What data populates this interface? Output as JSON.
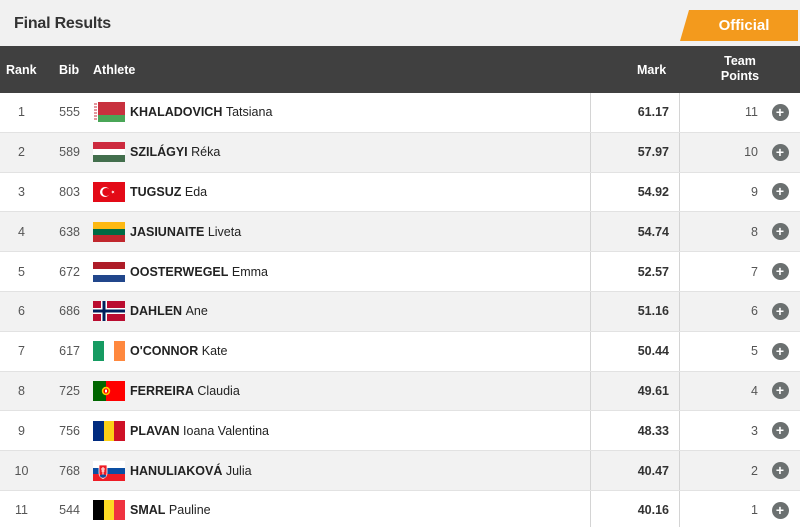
{
  "header": {
    "title": "Final Results",
    "status_badge": "Official"
  },
  "table": {
    "columns": {
      "rank": "Rank",
      "bib": "Bib",
      "athlete": "Athlete",
      "mark": "Mark",
      "team_points_line1": "Team",
      "team_points_line2": "Points"
    },
    "rows": [
      {
        "rank": "1",
        "bib": "555",
        "surname": "KHALADOVICH",
        "given": "Tatsiana",
        "flag": "belarus-flag",
        "mark": "61.17",
        "points": "11"
      },
      {
        "rank": "2",
        "bib": "589",
        "surname": "SZILÁGYI",
        "given": "Réka",
        "flag": "hungary-flag",
        "mark": "57.97",
        "points": "10"
      },
      {
        "rank": "3",
        "bib": "803",
        "surname": "TUGSUZ",
        "given": "Eda",
        "flag": "turkey-flag",
        "mark": "54.92",
        "points": "9"
      },
      {
        "rank": "4",
        "bib": "638",
        "surname": "JASIUNAITE",
        "given": "Liveta",
        "flag": "lithuania-flag",
        "mark": "54.74",
        "points": "8"
      },
      {
        "rank": "5",
        "bib": "672",
        "surname": "OOSTERWEGEL",
        "given": "Emma",
        "flag": "netherlands-flag",
        "mark": "52.57",
        "points": "7"
      },
      {
        "rank": "6",
        "bib": "686",
        "surname": "DAHLEN",
        "given": "Ane",
        "flag": "norway-flag",
        "mark": "51.16",
        "points": "6"
      },
      {
        "rank": "7",
        "bib": "617",
        "surname": "O'CONNOR",
        "given": "Kate",
        "flag": "ireland-flag",
        "mark": "50.44",
        "points": "5"
      },
      {
        "rank": "8",
        "bib": "725",
        "surname": "FERREIRA",
        "given": "Claudia",
        "flag": "portugal-flag",
        "mark": "49.61",
        "points": "4"
      },
      {
        "rank": "9",
        "bib": "756",
        "surname": "PLAVAN",
        "given": "Ioana Valentina",
        "flag": "romania-flag",
        "mark": "48.33",
        "points": "3"
      },
      {
        "rank": "10",
        "bib": "768",
        "surname": "HANULIAKOVÁ",
        "given": "Julia",
        "flag": "slovakia-flag",
        "mark": "40.47",
        "points": "2"
      },
      {
        "rank": "11",
        "bib": "544",
        "surname": "SMAL",
        "given": "Pauline",
        "flag": "belgium-flag",
        "mark": "40.16",
        "points": "1"
      }
    ]
  },
  "colors": {
    "header_bg": "#404040",
    "badge": "#f39a1d",
    "alt_row": "#f2f2f2",
    "expand_button": "#6b7070"
  }
}
